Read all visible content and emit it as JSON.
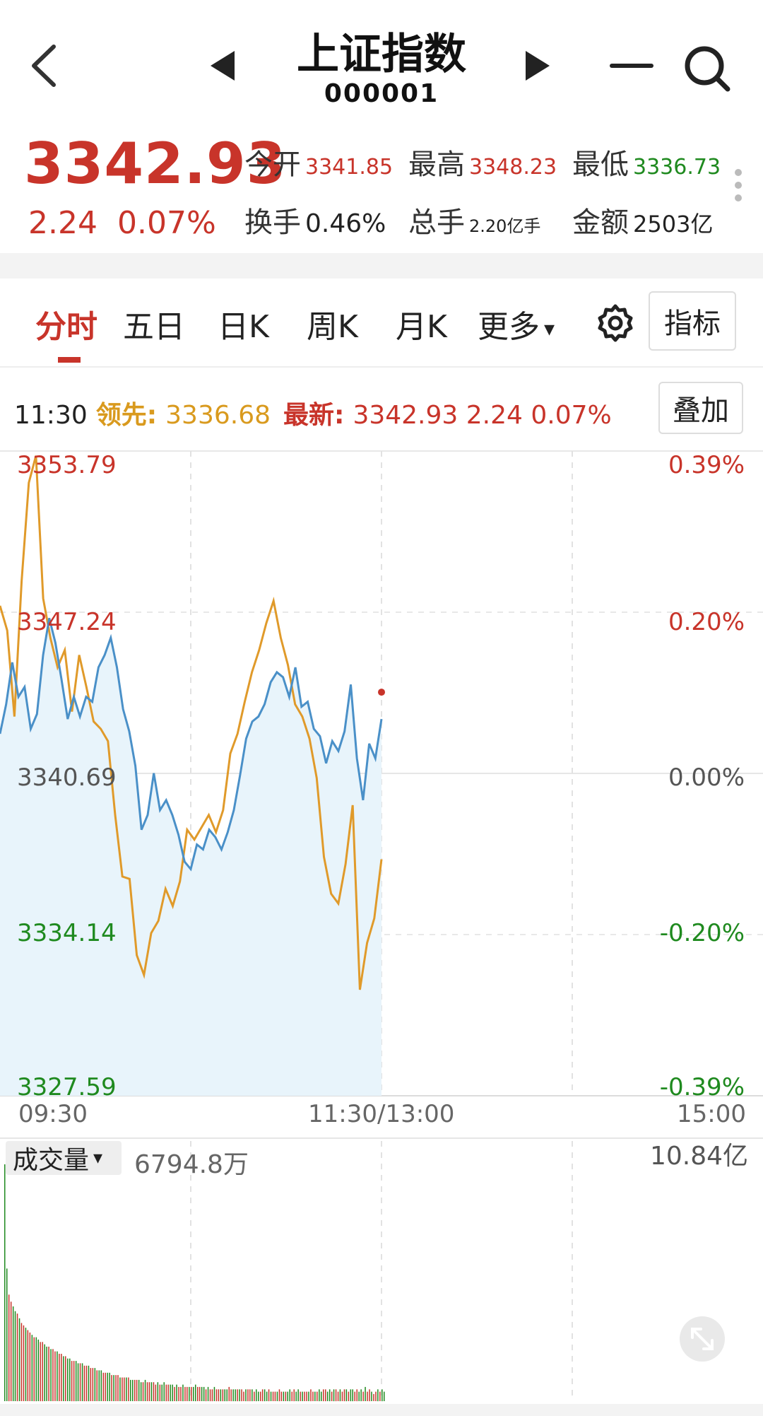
{
  "header": {
    "title": "上证指数",
    "code": "000001",
    "icons": {
      "back": "chevron-left-icon",
      "prev": "triangle-left-icon",
      "next": "triangle-right-icon",
      "minimize": "minus-icon",
      "search": "search-icon"
    }
  },
  "quote": {
    "price": "3342.93",
    "change": "2.24",
    "change_pct": "0.07%",
    "stats": [
      {
        "label": "今开",
        "value": "3341.85",
        "color": "#c8342a"
      },
      {
        "label": "最高",
        "value": "3348.23",
        "color": "#c8342a"
      },
      {
        "label": "最低",
        "value": "3336.73",
        "color": "#1f8a1f"
      },
      {
        "label": "换手",
        "value": "0.46%",
        "color": "#222222"
      },
      {
        "label": "总手",
        "value": "2.20亿手",
        "color": "#222222"
      },
      {
        "label": "金额",
        "value": "2503亿",
        "color": "#222222"
      }
    ]
  },
  "tabs": [
    {
      "label": "分时",
      "active": true
    },
    {
      "label": "五日"
    },
    {
      "label": "日K"
    },
    {
      "label": "周K"
    },
    {
      "label": "月K"
    },
    {
      "label": "更多"
    }
  ],
  "tab_more_arrow": "▾",
  "indicator_button": "指标",
  "info_line": {
    "time": "11:30",
    "lead_label": "领先:",
    "lead_value": "3336.68",
    "latest_label": "最新:",
    "latest_value": "3342.93 2.24 0.07%"
  },
  "overlay_button": "叠加",
  "chart_data": {
    "type": "line",
    "y_labels_left": [
      "3353.79",
      "3347.24",
      "3340.69",
      "3334.14",
      "3327.59"
    ],
    "y_labels_right": [
      "0.39%",
      "0.20%",
      "0.00%",
      "-0.20%",
      "-0.39%"
    ],
    "x_labels": [
      "09:30",
      "11:30/13:00",
      "15:00"
    ],
    "ylim": [
      3327.59,
      3353.79
    ],
    "prev_close": 3340.69,
    "grid": true,
    "colors": {
      "price": "#4a90c8",
      "lead": "#e09a2a",
      "fill": "#e8f4fb",
      "up": "#c8342a",
      "down": "#1f8a1f"
    },
    "series": [
      {
        "key": "price",
        "values": [
          3342.3,
          3343.5,
          3345.2,
          3343.8,
          3344.2,
          3342.5,
          3343.1,
          3345.5,
          3347.0,
          3346.0,
          3344.5,
          3342.9,
          3343.8,
          3343.0,
          3343.8,
          3343.6,
          3345.0,
          3345.5,
          3346.2,
          3345.0,
          3343.3,
          3342.4,
          3341.0,
          3338.4,
          3339.0,
          3340.7,
          3339.2,
          3339.6,
          3339.0,
          3338.2,
          3337.1,
          3336.8,
          3337.8,
          3337.6,
          3338.4,
          3338.1,
          3337.6,
          3338.3,
          3339.2,
          3340.6,
          3342.1,
          3342.8,
          3343.0,
          3343.5,
          3344.4,
          3344.8,
          3344.6,
          3343.8,
          3345.0,
          3343.4,
          3343.6,
          3342.5,
          3342.2,
          3341.1,
          3342.0,
          3341.6,
          3342.4,
          3344.3,
          3341.3,
          3339.6,
          3341.9,
          3341.3,
          3342.9
        ],
        "markers": [
          "price"
        ]
      },
      {
        "key": "lead",
        "values": [
          3347.5,
          3346.5,
          3343.0,
          3348.5,
          3352.5,
          3353.6,
          3347.8,
          3346.2,
          3345.0,
          3345.7,
          3343.2,
          3345.5,
          3344.2,
          3342.8,
          3342.5,
          3342.0,
          3339.0,
          3336.5,
          3336.4,
          3333.3,
          3332.5,
          3334.2,
          3334.7,
          3336.0,
          3335.3,
          3336.3,
          3338.4,
          3338.0,
          3338.5,
          3339.0,
          3338.3,
          3339.2,
          3341.5,
          3342.3,
          3343.6,
          3344.8,
          3345.7,
          3346.8,
          3347.7,
          3346.2,
          3345.1,
          3343.5,
          3343.0,
          3342.1,
          3340.5,
          3337.3,
          3335.8,
          3335.4,
          3337.0,
          3339.4,
          3331.9,
          3333.8,
          3334.8,
          3337.2
        ],
        "markers": [
          "lead"
        ]
      }
    ]
  },
  "volume": {
    "label": "成交量",
    "label_arrow": "▾",
    "value": "6794.8万",
    "max_label": "10.84亿",
    "bars": [
      1.0,
      0.56,
      0.45,
      0.42,
      0.4,
      0.38,
      0.37,
      0.35,
      0.33,
      0.32,
      0.31,
      0.3,
      0.29,
      0.28,
      0.27,
      0.27,
      0.26,
      0.25,
      0.25,
      0.24,
      0.23,
      0.23,
      0.22,
      0.22,
      0.21,
      0.21,
      0.2,
      0.2,
      0.19,
      0.19,
      0.18,
      0.18,
      0.17,
      0.17,
      0.17,
      0.16,
      0.16,
      0.16,
      0.15,
      0.15,
      0.15,
      0.14,
      0.14,
      0.14,
      0.13,
      0.13,
      0.13,
      0.12,
      0.12,
      0.12,
      0.12,
      0.11,
      0.11,
      0.11,
      0.11,
      0.1,
      0.1,
      0.1,
      0.1,
      0.1,
      0.09,
      0.09,
      0.09,
      0.09,
      0.09,
      0.08,
      0.08,
      0.09,
      0.08,
      0.08,
      0.08,
      0.08,
      0.07,
      0.08,
      0.07,
      0.07,
      0.08,
      0.07,
      0.07,
      0.07,
      0.07,
      0.06,
      0.07,
      0.06,
      0.06,
      0.07,
      0.06,
      0.06,
      0.06,
      0.06,
      0.06,
      0.07,
      0.06,
      0.06,
      0.06,
      0.06,
      0.05,
      0.06,
      0.05,
      0.05,
      0.06,
      0.05,
      0.05,
      0.05,
      0.05,
      0.05,
      0.05,
      0.06,
      0.05,
      0.05,
      0.05,
      0.05,
      0.05,
      0.05,
      0.04,
      0.05,
      0.05,
      0.05,
      0.05,
      0.04,
      0.05,
      0.04,
      0.04,
      0.05,
      0.05,
      0.04,
      0.05,
      0.04,
      0.04,
      0.04,
      0.04,
      0.05,
      0.04,
      0.04,
      0.04,
      0.04,
      0.05,
      0.04,
      0.05,
      0.04,
      0.05,
      0.04,
      0.04,
      0.04,
      0.04,
      0.04,
      0.05,
      0.04,
      0.04,
      0.04,
      0.05,
      0.04,
      0.05,
      0.05,
      0.04,
      0.05,
      0.04,
      0.05,
      0.05,
      0.04,
      0.05,
      0.04,
      0.05,
      0.05,
      0.04,
      0.05,
      0.05,
      0.04,
      0.05,
      0.04,
      0.05,
      0.04,
      0.06,
      0.04,
      0.05,
      0.04,
      0.03,
      0.04,
      0.05,
      0.04,
      0.05,
      0.04
    ]
  },
  "expand_icon": "expand-arrows-icon"
}
